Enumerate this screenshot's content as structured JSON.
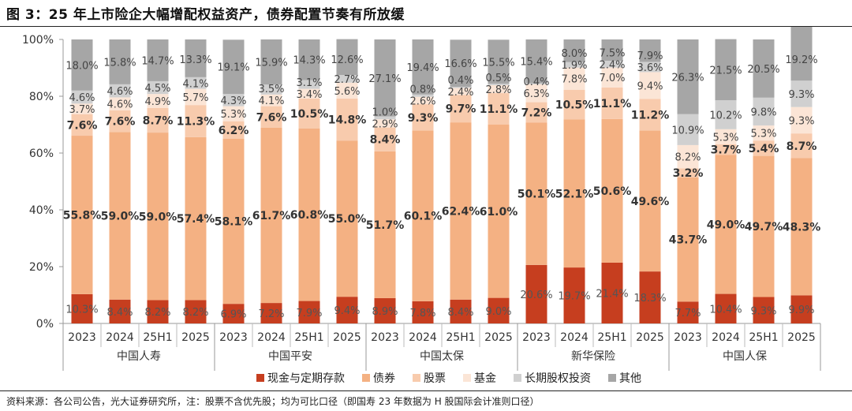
{
  "title": "图 3：25 年上市险企大幅增配权益资产，债券配置节奏有所放缓",
  "source": "资料来源：各公司公告，光大证券研究所，注：股票不含优先股；均为可比口径（即国寿 23 年数据为 H 股国际会计准则口径）",
  "colors": {
    "cash": "#c63e1f",
    "bond": "#f4b183",
    "stock": "#f8cbad",
    "fund": "#fbe5d6",
    "ltequity": "#d0d0d0",
    "other": "#a6a6a6"
  },
  "chart_data": {
    "type": "bar",
    "stacked": true,
    "ylim": [
      0,
      100
    ],
    "yticks": [
      "0%",
      "20%",
      "40%",
      "60%",
      "80%",
      "100%"
    ],
    "groups": [
      {
        "name": "中国人寿",
        "categories": [
          "2023",
          "2024",
          "25H1",
          "2025"
        ]
      },
      {
        "name": "中国平安",
        "categories": [
          "2023",
          "2024",
          "25H1",
          "2025"
        ]
      },
      {
        "name": "中国太保",
        "categories": [
          "2023",
          "2024",
          "25H1",
          "2025"
        ]
      },
      {
        "name": "新华保险",
        "categories": [
          "2023",
          "2024",
          "25H1",
          "2025"
        ]
      },
      {
        "name": "中国人保",
        "categories": [
          "2023",
          "2024",
          "25H1",
          "2025"
        ]
      }
    ],
    "series": [
      {
        "key": "cash",
        "name": "现金与定期存款",
        "values": [
          10.3,
          8.4,
          8.2,
          8.2,
          6.9,
          7.2,
          7.9,
          9.4,
          8.9,
          7.8,
          8.4,
          9.0,
          20.6,
          19.7,
          21.4,
          18.3,
          7.7,
          10.4,
          9.3,
          9.9
        ]
      },
      {
        "key": "bond",
        "name": "债券",
        "values": [
          55.8,
          59.0,
          59.0,
          57.4,
          58.1,
          61.7,
          60.8,
          55.0,
          51.7,
          60.1,
          62.4,
          61.0,
          50.1,
          52.1,
          50.6,
          49.6,
          43.7,
          49.0,
          49.7,
          48.3
        ]
      },
      {
        "key": "stock",
        "name": "股票",
        "values": [
          7.6,
          7.6,
          8.7,
          11.3,
          6.2,
          7.6,
          10.5,
          14.8,
          8.4,
          9.3,
          9.7,
          11.1,
          7.2,
          10.5,
          11.1,
          11.2,
          3.2,
          3.7,
          5.4,
          8.7
        ]
      },
      {
        "key": "fund",
        "name": "基金",
        "values": [
          3.7,
          4.6,
          4.9,
          5.7,
          5.3,
          4.1,
          3.4,
          5.6,
          2.9,
          2.6,
          2.4,
          2.8,
          6.3,
          7.8,
          7.0,
          9.4,
          8.2,
          5.3,
          5.3,
          9.3
        ]
      },
      {
        "key": "ltequity",
        "name": "长期股权投资",
        "values": [
          4.6,
          4.6,
          4.5,
          4.1,
          4.3,
          3.5,
          3.1,
          2.7,
          1.0,
          0.8,
          0.4,
          0.5,
          0.4,
          1.9,
          2.4,
          3.6,
          10.9,
          10.2,
          9.8,
          9.3
        ]
      },
      {
        "key": "other",
        "name": "其他",
        "values": [
          18.0,
          15.8,
          14.7,
          13.3,
          19.1,
          15.9,
          14.3,
          12.6,
          27.1,
          19.4,
          16.6,
          15.5,
          15.4,
          8.0,
          7.5,
          7.9,
          26.3,
          21.5,
          20.5,
          19.2
        ]
      }
    ],
    "label_suffix": "%",
    "legend_position": "bottom"
  }
}
